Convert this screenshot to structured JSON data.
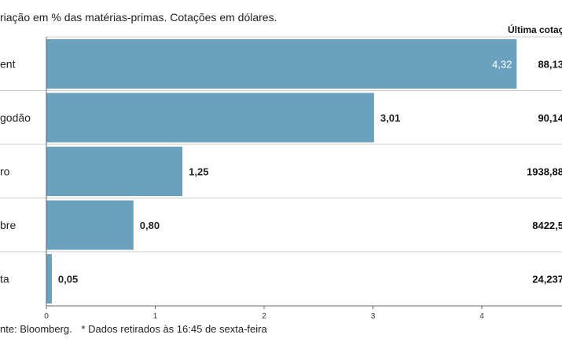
{
  "subtitle": "riação em % das matérias-primas. Cotações em dólares.",
  "quote_header": "Última cotaç",
  "footer": {
    "source": "nte: Bloomberg.",
    "note": "* Dados retirados às 16:45 de sexta-feira"
  },
  "colors": {
    "bar": "#6aa2bd",
    "grid": "#cccccc",
    "axis": "#666666"
  },
  "chart_data": {
    "type": "bar",
    "orientation": "horizontal",
    "categories": [
      "ent",
      "godão",
      "ro",
      "bre",
      "ta"
    ],
    "values": [
      4.32,
      3.01,
      1.25,
      0.8,
      0.05
    ],
    "value_labels": [
      "4,32",
      "3,01",
      "1,25",
      "0,80",
      "0,05"
    ],
    "last_quotes": [
      "88,13",
      "90,14",
      "1938,88",
      "8422,5",
      "24,237"
    ],
    "x_ticks": [
      0,
      1,
      2,
      3,
      4
    ],
    "x_tick_labels": [
      "0",
      "1",
      "2",
      "3",
      "4"
    ],
    "xlim": [
      0,
      4.72
    ]
  }
}
